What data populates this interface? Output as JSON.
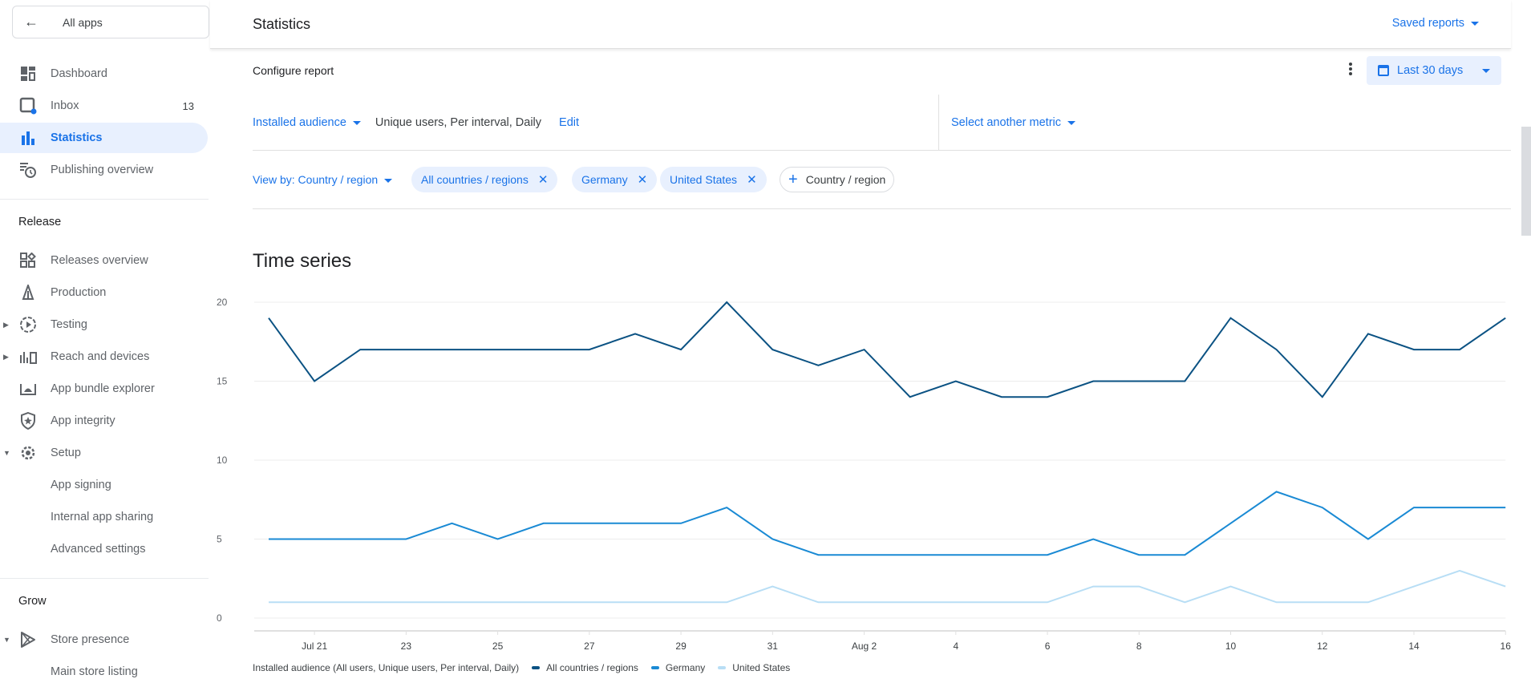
{
  "sidebar": {
    "back_label": "All apps",
    "items_top": [
      {
        "label": "Dashboard",
        "icon": "dashboard-icon"
      },
      {
        "label": "Inbox",
        "icon": "inbox-icon",
        "badge": "13"
      },
      {
        "label": "Statistics",
        "icon": "bar-chart-icon",
        "active": true
      },
      {
        "label": "Publishing overview",
        "icon": "publishing-icon"
      }
    ],
    "release_title": "Release",
    "release_items": [
      {
        "label": "Releases overview",
        "icon": "releases-overview-icon"
      },
      {
        "label": "Production",
        "icon": "production-icon"
      },
      {
        "label": "Testing",
        "icon": "testing-icon",
        "caret": "collapsed"
      },
      {
        "label": "Reach and devices",
        "icon": "reach-devices-icon",
        "caret": "collapsed"
      },
      {
        "label": "App bundle explorer",
        "icon": "app-bundle-icon"
      },
      {
        "label": "App integrity",
        "icon": "shield-star-icon"
      },
      {
        "label": "Setup",
        "icon": "gear-icon",
        "caret": "expanded"
      },
      {
        "label": "App signing"
      },
      {
        "label": "Internal app sharing"
      },
      {
        "label": "Advanced settings"
      }
    ],
    "grow_title": "Grow",
    "grow_items": [
      {
        "label": "Store presence",
        "icon": "play-icon",
        "caret": "expanded"
      },
      {
        "label": "Main store listing"
      }
    ]
  },
  "header": {
    "title": "Statistics",
    "saved_reports": "Saved reports"
  },
  "configure": {
    "title": "Configure report",
    "date_range": "Last 30 days"
  },
  "metric": {
    "selected": "Installed audience",
    "description": "Unique users, Per interval, Daily",
    "edit": "Edit",
    "another": "Select another metric"
  },
  "view_by": {
    "label": "View by: Country / region",
    "chips": [
      "All countries / regions",
      "Germany",
      "United States"
    ],
    "add_chip": "Country / region"
  },
  "time_series": {
    "title": "Time series"
  },
  "colors": {
    "accent": "#1a73e8",
    "series_all": "#0b5283",
    "series_germany": "#1a8ad4",
    "series_us": "#b8def5"
  },
  "chart_data": {
    "type": "line",
    "title": "Time series",
    "xlabel": "",
    "ylabel": "",
    "ylim": [
      0,
      20
    ],
    "yticks": [
      0,
      5,
      10,
      15,
      20
    ],
    "xtick_labels": [
      "Jul 21",
      "23",
      "25",
      "27",
      "29",
      "31",
      "Aug 2",
      "4",
      "6",
      "8",
      "10",
      "12",
      "14",
      "16"
    ],
    "x": [
      "Jul 20",
      "Jul 21",
      "Jul 22",
      "Jul 23",
      "Jul 24",
      "Jul 25",
      "Jul 26",
      "Jul 27",
      "Jul 28",
      "Jul 29",
      "Jul 30",
      "Jul 31",
      "Aug 1",
      "Aug 2",
      "Aug 3",
      "Aug 4",
      "Aug 5",
      "Aug 6",
      "Aug 7",
      "Aug 8",
      "Aug 9",
      "Aug 10",
      "Aug 11",
      "Aug 12",
      "Aug 13",
      "Aug 14",
      "Aug 15",
      "Aug 16"
    ],
    "series": [
      {
        "name": "All countries / regions",
        "color": "#0b5283",
        "values": [
          19,
          15,
          17,
          17,
          17,
          17,
          17,
          17,
          18,
          17,
          20,
          17,
          16,
          17,
          14,
          15,
          14,
          14,
          15,
          15,
          15,
          19,
          17,
          14,
          18,
          17,
          17,
          19
        ]
      },
      {
        "name": "Germany",
        "color": "#1a8ad4",
        "values": [
          5,
          5,
          5,
          5,
          6,
          5,
          6,
          6,
          6,
          6,
          7,
          5,
          4,
          4,
          4,
          4,
          4,
          4,
          5,
          4,
          4,
          6,
          8,
          7,
          5,
          7,
          7,
          7
        ]
      },
      {
        "name": "United States",
        "color": "#b8def5",
        "values": [
          1,
          1,
          1,
          1,
          1,
          1,
          1,
          1,
          1,
          1,
          1,
          2,
          1,
          1,
          1,
          1,
          1,
          1,
          2,
          2,
          1,
          2,
          1,
          1,
          1,
          2,
          3,
          2
        ]
      }
    ],
    "legend_title": "Installed audience (All users, Unique users, Per interval, Daily)",
    "legend_position": "bottom",
    "grid": true
  }
}
